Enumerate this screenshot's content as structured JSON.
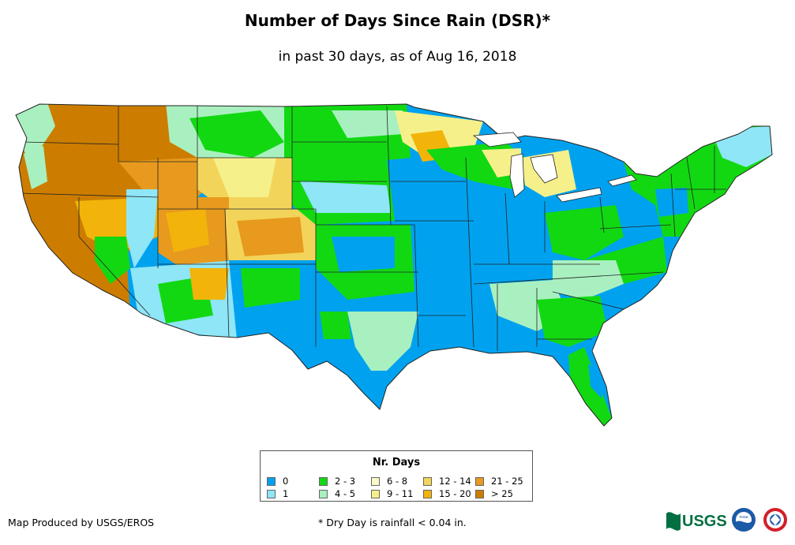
{
  "title": "Number of Days Since Rain (DSR)*",
  "subtitle": "in past 30 days, as of Aug 16, 2018",
  "legend": {
    "title": "Nr. Days",
    "items": [
      {
        "label": "0",
        "color": "#00a2ef"
      },
      {
        "label": "1",
        "color": "#8ee6f6"
      },
      {
        "label": "2 - 3",
        "color": "#12d812"
      },
      {
        "label": "4 - 5",
        "color": "#a9f0c0"
      },
      {
        "label": "6 - 8",
        "color": "#fafac8"
      },
      {
        "label": "9 - 11",
        "color": "#f5f08a"
      },
      {
        "label": "12 - 14",
        "color": "#f3d45a"
      },
      {
        "label": "15 - 20",
        "color": "#f2b40a"
      },
      {
        "label": "21 - 25",
        "color": "#e79a1e"
      },
      {
        "label": "> 25",
        "color": "#cc7d00"
      }
    ]
  },
  "footer": {
    "credit": "Map Produced by USGS/EROS",
    "note": "* Dry Day is rainfall < 0.04 in."
  },
  "logos": {
    "usgs": "USGS",
    "noaa": "noaa"
  }
}
